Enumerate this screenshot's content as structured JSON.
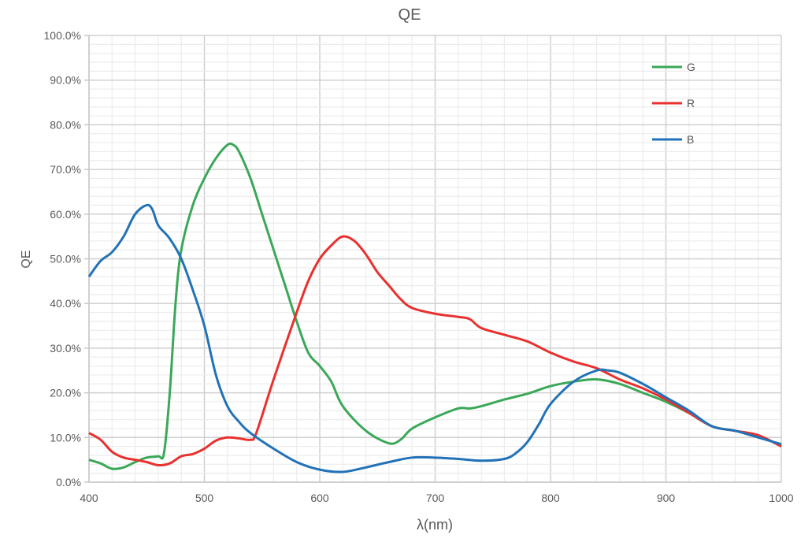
{
  "chart_data": {
    "type": "line",
    "title": "QE",
    "xlabel": "λ(nm)",
    "ylabel": "QE",
    "xlim": [
      400,
      1000
    ],
    "ylim": [
      0,
      100
    ],
    "x_ticks": [
      "400",
      "500",
      "600",
      "700",
      "800",
      "900",
      "1000"
    ],
    "y_ticks": [
      "0.0%",
      "10.0%",
      "20.0%",
      "30.0%",
      "40.0%",
      "50.0%",
      "60.0%",
      "70.0%",
      "80.0%",
      "90.0%",
      "100.0%"
    ],
    "grid": true,
    "legend_placement": "top-right",
    "series": [
      {
        "name": "G",
        "color": "#3aa858",
        "points": [
          [
            400,
            5
          ],
          [
            410,
            4.2
          ],
          [
            420,
            3
          ],
          [
            430,
            3.3
          ],
          [
            440,
            4.5
          ],
          [
            450,
            5.5
          ],
          [
            460,
            5.8
          ],
          [
            465,
            6.5
          ],
          [
            470,
            20
          ],
          [
            475,
            40
          ],
          [
            480,
            52
          ],
          [
            490,
            62
          ],
          [
            500,
            68
          ],
          [
            510,
            72.5
          ],
          [
            520,
            75.5
          ],
          [
            525,
            75.5
          ],
          [
            530,
            74
          ],
          [
            540,
            68
          ],
          [
            550,
            60
          ],
          [
            560,
            52
          ],
          [
            570,
            44
          ],
          [
            580,
            36
          ],
          [
            590,
            29
          ],
          [
            600,
            26
          ],
          [
            610,
            22.5
          ],
          [
            620,
            17
          ],
          [
            640,
            11.5
          ],
          [
            660,
            8.7
          ],
          [
            670,
            9.5
          ],
          [
            680,
            12
          ],
          [
            700,
            14.5
          ],
          [
            720,
            16.5
          ],
          [
            730,
            16.5
          ],
          [
            740,
            17
          ],
          [
            760,
            18.5
          ],
          [
            780,
            19.8
          ],
          [
            800,
            21.5
          ],
          [
            820,
            22.5
          ],
          [
            840,
            23
          ],
          [
            860,
            22
          ],
          [
            880,
            20
          ],
          [
            900,
            18
          ],
          [
            920,
            15.5
          ],
          [
            940,
            12.5
          ],
          [
            960,
            11.5
          ],
          [
            980,
            10.5
          ],
          [
            1000,
            8
          ]
        ]
      },
      {
        "name": "R",
        "color": "#e8312f",
        "points": [
          [
            400,
            11
          ],
          [
            410,
            9.5
          ],
          [
            420,
            6.8
          ],
          [
            430,
            5.5
          ],
          [
            440,
            5
          ],
          [
            450,
            4.5
          ],
          [
            460,
            3.8
          ],
          [
            470,
            4.2
          ],
          [
            480,
            5.8
          ],
          [
            490,
            6.3
          ],
          [
            500,
            7.5
          ],
          [
            510,
            9.3
          ],
          [
            520,
            10
          ],
          [
            530,
            9.8
          ],
          [
            540,
            9.5
          ],
          [
            545,
            11
          ],
          [
            560,
            23
          ],
          [
            580,
            38
          ],
          [
            590,
            45
          ],
          [
            600,
            50
          ],
          [
            610,
            53
          ],
          [
            620,
            55
          ],
          [
            630,
            54
          ],
          [
            640,
            51
          ],
          [
            650,
            47
          ],
          [
            660,
            44
          ],
          [
            670,
            41
          ],
          [
            680,
            39
          ],
          [
            700,
            37.7
          ],
          [
            720,
            37
          ],
          [
            730,
            36.5
          ],
          [
            740,
            34.5
          ],
          [
            760,
            33
          ],
          [
            780,
            31.5
          ],
          [
            800,
            29
          ],
          [
            820,
            27
          ],
          [
            840,
            25.5
          ],
          [
            860,
            23
          ],
          [
            880,
            21
          ],
          [
            900,
            18.5
          ],
          [
            920,
            15.5
          ],
          [
            940,
            12.5
          ],
          [
            960,
            11.5
          ],
          [
            980,
            10.5
          ],
          [
            1000,
            8
          ]
        ]
      },
      {
        "name": "B",
        "color": "#2272b8",
        "points": [
          [
            400,
            46
          ],
          [
            410,
            49.5
          ],
          [
            420,
            51.5
          ],
          [
            430,
            55
          ],
          [
            440,
            60
          ],
          [
            450,
            62
          ],
          [
            455,
            61
          ],
          [
            460,
            57.5
          ],
          [
            470,
            54.5
          ],
          [
            480,
            50
          ],
          [
            490,
            43
          ],
          [
            500,
            35
          ],
          [
            510,
            24
          ],
          [
            520,
            17
          ],
          [
            530,
            13.5
          ],
          [
            540,
            11
          ],
          [
            560,
            7.5
          ],
          [
            580,
            4.5
          ],
          [
            600,
            2.8
          ],
          [
            620,
            2.3
          ],
          [
            640,
            3.3
          ],
          [
            660,
            4.5
          ],
          [
            680,
            5.5
          ],
          [
            700,
            5.5
          ],
          [
            720,
            5.2
          ],
          [
            740,
            4.8
          ],
          [
            760,
            5.2
          ],
          [
            770,
            6.5
          ],
          [
            780,
            9
          ],
          [
            790,
            13
          ],
          [
            800,
            17.5
          ],
          [
            820,
            22.5
          ],
          [
            840,
            25
          ],
          [
            850,
            25
          ],
          [
            860,
            24.5
          ],
          [
            880,
            22
          ],
          [
            900,
            19
          ],
          [
            920,
            16
          ],
          [
            940,
            12.5
          ],
          [
            960,
            11.5
          ],
          [
            980,
            10
          ],
          [
            1000,
            8.5
          ]
        ]
      }
    ]
  }
}
